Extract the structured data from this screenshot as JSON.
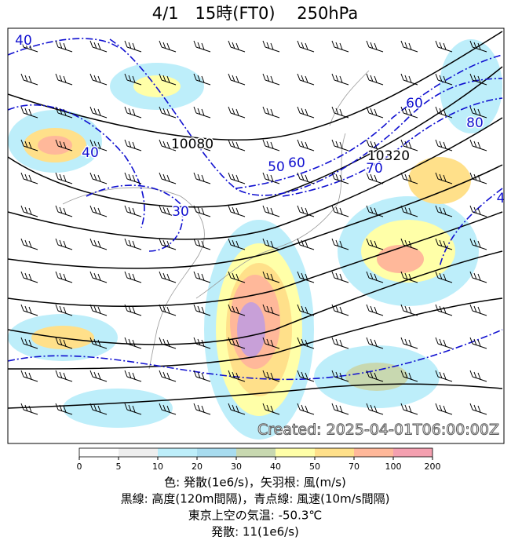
{
  "title": "4/1　15時(FT0)　 250hPa",
  "stamp": "Created: 2025-04-01T06:00:00Z",
  "height_labels": [
    "10080",
    "10320"
  ],
  "wind_speed_labels": [
    "40",
    "40",
    "30",
    "50",
    "60",
    "60",
    "70",
    "80",
    "4"
  ],
  "colorbar": {
    "ticks": [
      0,
      5,
      10,
      20,
      30,
      40,
      50,
      70,
      100,
      200
    ],
    "colors": [
      "#ffffff",
      "#eeeeee",
      "#bdeefa",
      "#a8dcef",
      "#c8d8b0",
      "#ffffa8",
      "#ffe08a",
      "#ffb89a",
      "#f4a0b0",
      "#c8a0d8"
    ]
  },
  "caption": [
    "色: 発散(1e6/s)，矢羽根: 風(m/s)",
    "黒線: 高度(120m間隔)，青点線: 風速(10m/s間隔)",
    "東京上空の気温: -50.3℃",
    "発散: 11(1e6/s)"
  ]
}
